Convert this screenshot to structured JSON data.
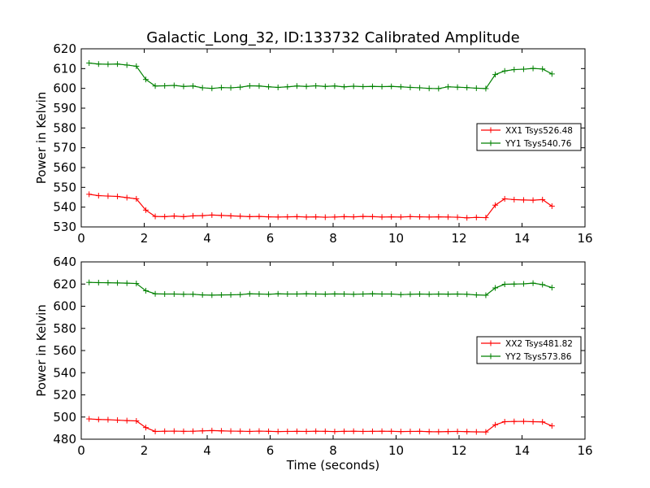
{
  "title": "Galactic_Long_32, ID:133732 Calibrated Amplitude",
  "chart_data": [
    {
      "type": "line",
      "xlabel": "",
      "ylabel": "Power in Kelvin",
      "xlim": [
        0,
        16
      ],
      "ylim": [
        530,
        620
      ],
      "xticks": [
        0,
        2,
        4,
        6,
        8,
        10,
        12,
        14,
        16
      ],
      "yticks": [
        530,
        540,
        550,
        560,
        570,
        580,
        590,
        600,
        610,
        620
      ],
      "legend_position": "center-right",
      "grid": false,
      "x": [
        0.25,
        0.55,
        0.85,
        1.15,
        1.45,
        1.75,
        2.05,
        2.35,
        2.65,
        2.95,
        3.25,
        3.55,
        3.85,
        4.15,
        4.45,
        4.75,
        5.05,
        5.35,
        5.65,
        5.95,
        6.25,
        6.55,
        6.85,
        7.15,
        7.45,
        7.75,
        8.05,
        8.35,
        8.65,
        8.95,
        9.25,
        9.55,
        9.85,
        10.15,
        10.45,
        10.75,
        11.05,
        11.35,
        11.65,
        11.95,
        12.25,
        12.55,
        12.85,
        13.15,
        13.45,
        13.75,
        14.05,
        14.35,
        14.65,
        14.95
      ],
      "series": [
        {
          "name": "XX1 Tsys526.48",
          "color": "#ff0000",
          "values": [
            546.5,
            545.8,
            545.6,
            545.4,
            544.8,
            544.2,
            538.5,
            535.3,
            535.2,
            535.5,
            535.2,
            535.6,
            535.7,
            536.0,
            535.8,
            535.6,
            535.4,
            535.2,
            535.3,
            535.1,
            535.0,
            535.1,
            535.2,
            535.0,
            535.1,
            534.9,
            535.0,
            535.2,
            535.1,
            535.3,
            535.2,
            535.0,
            535.1,
            535.0,
            535.2,
            535.1,
            535.0,
            535.1,
            535.0,
            534.9,
            534.6,
            534.8,
            534.7,
            541.0,
            544.2,
            543.8,
            543.6,
            543.5,
            543.8,
            540.5
          ]
        },
        {
          "name": "YY1 Tsys540.76",
          "color": "#008000",
          "values": [
            612.8,
            612.3,
            612.2,
            612.3,
            611.8,
            611.2,
            604.5,
            601.2,
            601.3,
            601.5,
            601.0,
            601.2,
            600.3,
            600.0,
            600.4,
            600.3,
            600.6,
            601.3,
            601.2,
            600.8,
            600.5,
            600.8,
            601.2,
            601.0,
            601.3,
            601.0,
            601.2,
            600.8,
            601.1,
            600.9,
            601.0,
            600.9,
            601.0,
            600.8,
            600.5,
            600.3,
            600.0,
            599.9,
            600.8,
            600.6,
            600.4,
            600.1,
            599.9,
            607.0,
            608.8,
            609.5,
            609.7,
            610.1,
            609.8,
            607.3
          ]
        }
      ]
    },
    {
      "type": "line",
      "xlabel": "Time (seconds)",
      "ylabel": "Power in Kelvin",
      "xlim": [
        0,
        16
      ],
      "ylim": [
        480,
        640
      ],
      "xticks": [
        0,
        2,
        4,
        6,
        8,
        10,
        12,
        14,
        16
      ],
      "yticks": [
        480,
        500,
        520,
        540,
        560,
        580,
        600,
        620,
        640
      ],
      "legend_position": "center-right",
      "grid": false,
      "x": [
        0.25,
        0.55,
        0.85,
        1.15,
        1.45,
        1.75,
        2.05,
        2.35,
        2.65,
        2.95,
        3.25,
        3.55,
        3.85,
        4.15,
        4.45,
        4.75,
        5.05,
        5.35,
        5.65,
        5.95,
        6.25,
        6.55,
        6.85,
        7.15,
        7.45,
        7.75,
        8.05,
        8.35,
        8.65,
        8.95,
        9.25,
        9.55,
        9.85,
        10.15,
        10.45,
        10.75,
        11.05,
        11.35,
        11.65,
        11.95,
        12.25,
        12.55,
        12.85,
        13.15,
        13.45,
        13.75,
        14.05,
        14.35,
        14.65,
        14.95
      ],
      "series": [
        {
          "name": "XX2 Tsys481.82",
          "color": "#ff0000",
          "values": [
            498.3,
            497.8,
            497.6,
            497.2,
            496.8,
            496.5,
            490.5,
            487.0,
            487.2,
            487.3,
            487.1,
            487.2,
            487.5,
            487.8,
            487.5,
            487.3,
            487.2,
            487.0,
            487.3,
            487.1,
            486.9,
            487.0,
            487.1,
            487.0,
            487.2,
            487.1,
            486.9,
            487.1,
            487.2,
            487.0,
            487.1,
            487.2,
            487.1,
            486.9,
            487.0,
            487.1,
            486.8,
            486.7,
            486.9,
            487.0,
            486.8,
            486.6,
            486.5,
            493.0,
            495.8,
            496.0,
            496.1,
            495.8,
            495.6,
            492.0
          ]
        },
        {
          "name": "YY2 Tsys573.86",
          "color": "#008000",
          "values": [
            621.5,
            621.3,
            621.2,
            621.0,
            620.8,
            620.5,
            614.0,
            611.2,
            611.0,
            611.0,
            610.8,
            610.8,
            610.2,
            610.0,
            610.2,
            610.3,
            610.5,
            611.2,
            611.0,
            610.8,
            611.2,
            611.0,
            611.0,
            611.2,
            611.0,
            610.9,
            611.1,
            611.0,
            610.8,
            611.0,
            611.2,
            611.0,
            611.0,
            610.5,
            610.8,
            611.0,
            610.8,
            611.0,
            610.9,
            611.0,
            610.8,
            610.2,
            609.9,
            616.5,
            619.8,
            620.0,
            620.2,
            620.8,
            619.5,
            616.8
          ]
        }
      ]
    }
  ]
}
